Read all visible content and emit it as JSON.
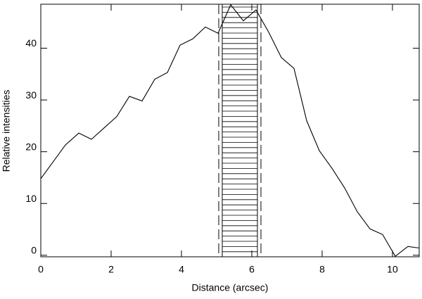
{
  "chart_data": {
    "type": "line",
    "x_label": "Distance (arcsec)",
    "y_label": "Relative intensities",
    "x": [
      0,
      0.7,
      1.08,
      1.44,
      1.8,
      2.16,
      2.52,
      2.88,
      3.24,
      3.6,
      3.96,
      4.32,
      4.68,
      5.04,
      5.4,
      5.76,
      6.12,
      6.48,
      6.84,
      7.2,
      7.56,
      7.92,
      8.28,
      8.64,
      9.0,
      9.36,
      9.72,
      10.08,
      10.44,
      10.76
    ],
    "series": [
      {
        "color": "#000000",
        "values": [
          14.8,
          21.3,
          23.6,
          22.4,
          24.6,
          26.8,
          30.7,
          29.8,
          34.0,
          35.3,
          40.6,
          41.8,
          44.1,
          42.9,
          48.4,
          45.3,
          47.4,
          43.1,
          38.2,
          36.1,
          26.0,
          20.2,
          16.8,
          13.0,
          8.4,
          5.1,
          4.0,
          -0.2,
          1.7,
          1.4
        ]
      }
    ],
    "band": [
      5.16,
      6.16
    ],
    "dashed_lines": [
      5.06,
      6.26
    ],
    "xlim": [
      0,
      10.76
    ],
    "ylim": [
      -0.3,
      48.5
    ],
    "xticks": [
      0,
      2,
      4,
      6,
      8,
      10
    ],
    "yticks": [
      0,
      10,
      20,
      30,
      40
    ]
  }
}
